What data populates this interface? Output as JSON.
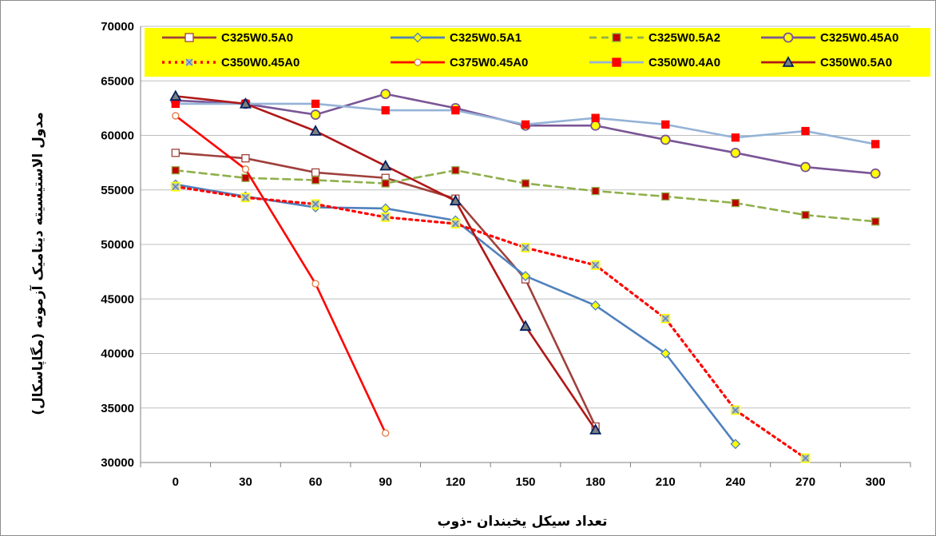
{
  "chart_data": {
    "type": "line",
    "xlabel": "تعداد سیکل یخبندان -ذوب",
    "ylabel": "مدول الاستیسیته دینامیک آزمونه (مگاپاسکال)",
    "ylim": [
      30000,
      70000
    ],
    "yticks": [
      "30000",
      "35000",
      "40000",
      "45000",
      "50000",
      "55000",
      "60000",
      "65000",
      "70000"
    ],
    "categories": [
      "0",
      "30",
      "60",
      "90",
      "120",
      "150",
      "180",
      "210",
      "240",
      "270",
      "300"
    ],
    "grid": "horizontal",
    "legend_position": "top",
    "legend_background": "#ffff00",
    "series": [
      {
        "name": "C325W0.5A0",
        "color": "#a0403c",
        "dash": "solid",
        "marker": "square",
        "marker_fill": "#ffffff",
        "marker_stroke": "#a0403c",
        "values": [
          58400,
          57900,
          56600,
          56100,
          54200,
          46800,
          33300,
          null,
          null,
          null,
          null
        ]
      },
      {
        "name": "C325W0.5A1",
        "color": "#4f81bd",
        "dash": "solid",
        "marker": "diamond",
        "marker_fill": "#ffff00",
        "marker_stroke": "#4f81bd",
        "values": [
          55500,
          54400,
          53400,
          53300,
          52200,
          47100,
          44400,
          40000,
          31700,
          null,
          null
        ]
      },
      {
        "name": "C325W0.5A2",
        "color": "#8fb04a",
        "dash": "dashed",
        "marker": "square",
        "marker_fill": "#c00000",
        "marker_stroke": "#8fb04a",
        "values": [
          56800,
          56100,
          55900,
          55600,
          56800,
          55600,
          54900,
          54400,
          53800,
          52700,
          52100
        ]
      },
      {
        "name": "C325W0.45A0",
        "color": "#7a5596",
        "dash": "solid",
        "marker": "circle",
        "marker_fill": "#ffff00",
        "marker_stroke": "#7a5596",
        "values": [
          63200,
          62900,
          61900,
          63800,
          62500,
          60900,
          60900,
          59600,
          58400,
          57100,
          56500
        ]
      },
      {
        "name": "C350W0.45A0",
        "color": "#ff0000",
        "dash": "dotted",
        "marker": "star",
        "marker_fill": "#c0c0c0",
        "marker_stroke": "#ffff00",
        "values": [
          55300,
          54300,
          53700,
          52500,
          51900,
          49700,
          48100,
          43200,
          34800,
          30400,
          null
        ]
      },
      {
        "name": "C375W0.45A0",
        "color": "#ff0000",
        "dash": "solid",
        "marker": "circle-small",
        "marker_fill": "#ffffff",
        "marker_stroke": "#e07840",
        "values": [
          61800,
          56900,
          46400,
          32700,
          null,
          null,
          null,
          null,
          null,
          null,
          null
        ]
      },
      {
        "name": "C350W0.4A0",
        "color": "#95b3d7",
        "dash": "solid",
        "marker": "square",
        "marker_fill": "#ff0000",
        "marker_stroke": "#ff0000",
        "values": [
          62900,
          62900,
          62900,
          62300,
          62300,
          61000,
          61600,
          61000,
          59800,
          60400,
          59200
        ]
      },
      {
        "name": "C350W0.5A0",
        "color": "#b01818",
        "dash": "solid",
        "marker": "triangle",
        "marker_fill": "#7f7f7f",
        "marker_stroke": "#002060",
        "values": [
          63600,
          62900,
          60400,
          57200,
          54000,
          42500,
          33000,
          null,
          null,
          null,
          null
        ]
      }
    ]
  }
}
